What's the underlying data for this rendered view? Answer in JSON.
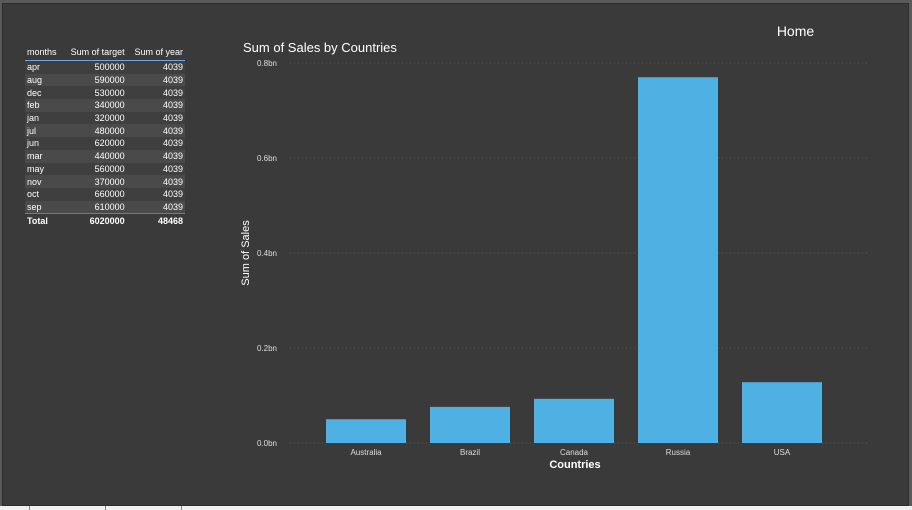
{
  "home_button": {
    "label": "Home"
  },
  "table": {
    "headers": [
      "months",
      "Sum of target",
      "Sum of year"
    ],
    "rows": [
      [
        "apr",
        "500000",
        "4039"
      ],
      [
        "aug",
        "590000",
        "4039"
      ],
      [
        "dec",
        "530000",
        "4039"
      ],
      [
        "feb",
        "340000",
        "4039"
      ],
      [
        "jan",
        "320000",
        "4039"
      ],
      [
        "jul",
        "480000",
        "4039"
      ],
      [
        "jun",
        "620000",
        "4039"
      ],
      [
        "mar",
        "440000",
        "4039"
      ],
      [
        "may",
        "560000",
        "4039"
      ],
      [
        "nov",
        "370000",
        "4039"
      ],
      [
        "oct",
        "660000",
        "4039"
      ],
      [
        "sep",
        "610000",
        "4039"
      ]
    ],
    "total": [
      "Total",
      "6020000",
      "48468"
    ]
  },
  "chart_data": {
    "type": "bar",
    "title": "Sum of Sales by Countries",
    "xlabel": "Countries",
    "ylabel": "Sum of Sales",
    "categories": [
      "Australia",
      "Brazil",
      "Canada",
      "Russia",
      "USA"
    ],
    "values": [
      0.05,
      0.076,
      0.093,
      0.77,
      0.128
    ],
    "ylim": [
      0,
      0.8
    ],
    "yticks": [
      0,
      0.2,
      0.4,
      0.6,
      0.8
    ],
    "ytick_labels": [
      "0.0bn",
      "0.2bn",
      "0.4bn",
      "0.6bn",
      "0.8bn"
    ],
    "grid": true,
    "bar_color": "#4fb1e3"
  }
}
